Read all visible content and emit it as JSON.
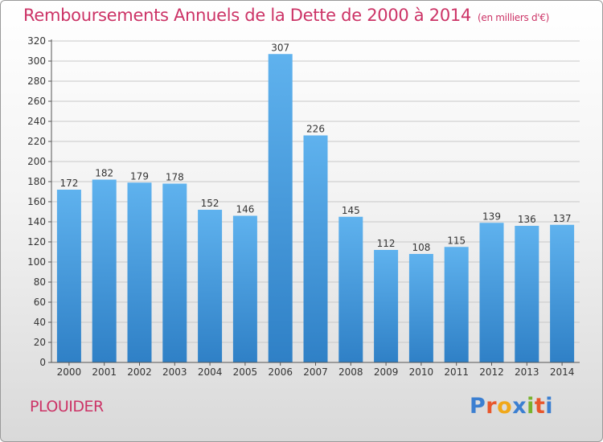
{
  "header": {
    "title": "Remboursements Annuels de la Dette de 2000 à 2014",
    "unit": "(en milliers d'€)"
  },
  "footer": {
    "commune": "PLOUIDER",
    "brand_letters": [
      "P",
      "r",
      "o",
      "x",
      "i",
      "t",
      "i"
    ],
    "brand_colors": [
      "#3b7fd1",
      "#e8572c",
      "#f0a81a",
      "#3b7fd1",
      "#78b22c",
      "#e8572c",
      "#3b7fd1"
    ]
  },
  "colors": {
    "title": "#cc3366",
    "bar_top": "#5fb2ee",
    "bar_bottom": "#2f80c6"
  },
  "chart_data": {
    "type": "bar",
    "title": "Remboursements Annuels de la Dette de 2000 à 2014",
    "subtitle": "(en milliers d'€)",
    "xlabel": "",
    "ylabel": "",
    "categories": [
      "2000",
      "2001",
      "2002",
      "2003",
      "2004",
      "2005",
      "2006",
      "2007",
      "2008",
      "2009",
      "2010",
      "2011",
      "2012",
      "2013",
      "2014"
    ],
    "values": [
      172,
      182,
      179,
      178,
      152,
      146,
      307,
      226,
      145,
      112,
      108,
      115,
      139,
      136,
      137
    ],
    "ylim": [
      0,
      320
    ],
    "yticks": [
      0,
      20,
      40,
      60,
      80,
      100,
      120,
      140,
      160,
      180,
      200,
      220,
      240,
      260,
      280,
      300,
      320
    ],
    "grid": true,
    "legend": "none",
    "data_labels": true
  }
}
